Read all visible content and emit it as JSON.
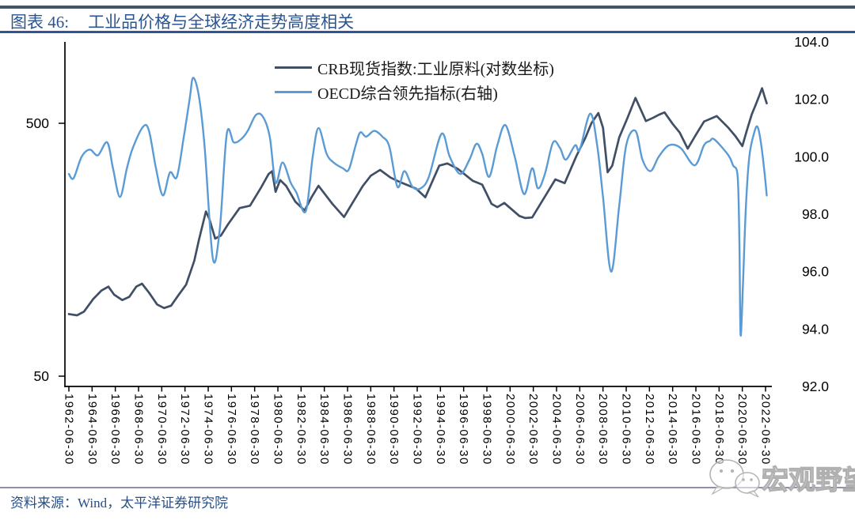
{
  "header": {
    "chart_label": "图表 46:",
    "chart_title": "工业品价格与全球经济走势高度相关"
  },
  "legend": {
    "entries": [
      {
        "label": "CRB现货指数:工业原料(对数坐标)",
        "color": "#414F66"
      },
      {
        "label": "OECD综合领先指标(右轴)",
        "color": "#5B9BD5"
      }
    ]
  },
  "footer": {
    "source_label": "资料来源：Wind，太平洋证券研究院"
  },
  "watermark": {
    "icon": "wechat-icon",
    "text": "宏观野望"
  },
  "colors": {
    "top_rule": "#44546A",
    "title_rule": "#2F5597",
    "title_text": "#2A5492",
    "footer_rule": "#8F8FAE",
    "footer_text": "#274F86",
    "crb_line": "#414F66",
    "oecd_line": "#5B9BD5",
    "axis": "#000000"
  },
  "chart_data": {
    "type": "line",
    "title": "工业品价格与全球经济走势高度相关",
    "x_axis": {
      "start_year": 1962.5,
      "end_year": 2022.5,
      "tick_labels": [
        "1962-06-30",
        "1964-06-30",
        "1966-06-30",
        "1968-06-30",
        "1970-06-30",
        "1972-06-30",
        "1974-06-30",
        "1976-06-30",
        "1978-06-30",
        "1980-06-30",
        "1982-06-30",
        "1984-06-30",
        "1986-06-30",
        "1988-06-30",
        "1990-06-30",
        "1992-06-30",
        "1994-06-30",
        "1996-06-30",
        "1998-06-30",
        "2000-06-30",
        "2002-06-30",
        "2004-06-30",
        "2006-06-30",
        "2008-06-30",
        "2010-06-30",
        "2012-06-30",
        "2014-06-30",
        "2016-06-30",
        "2018-06-30",
        "2020-06-30",
        "2022-06-30"
      ]
    },
    "left_axis": {
      "scale": "log",
      "tick_values": [
        500,
        50
      ],
      "tick_labels": [
        "500",
        "50"
      ]
    },
    "right_axis": {
      "scale": "linear",
      "min": 92.0,
      "max": 104.0,
      "tick_values": [
        104,
        102,
        100,
        98,
        96,
        94,
        92
      ],
      "tick_labels": [
        "104.0",
        "102.0",
        "100.0",
        "98.0",
        "96.0",
        "94.0",
        "92.0"
      ]
    },
    "series": [
      {
        "name": "CRB现货指数:工业原料(对数坐标)",
        "axis": "left",
        "color": "#414F66",
        "line_style": "jagged",
        "points": [
          [
            1962.5,
            88
          ],
          [
            1963.2,
            87
          ],
          [
            1963.8,
            90
          ],
          [
            1964.6,
            101
          ],
          [
            1965.3,
            109
          ],
          [
            1965.9,
            113
          ],
          [
            1966.4,
            105
          ],
          [
            1967.1,
            100
          ],
          [
            1967.7,
            103
          ],
          [
            1968.3,
            113
          ],
          [
            1968.8,
            116
          ],
          [
            1969.4,
            107
          ],
          [
            1970.1,
            96
          ],
          [
            1970.7,
            93
          ],
          [
            1971.3,
            95
          ],
          [
            1971.9,
            104
          ],
          [
            1972.6,
            115
          ],
          [
            1973.3,
            143
          ],
          [
            1973.7,
            173
          ],
          [
            1974.3,
            224
          ],
          [
            1974.6,
            209
          ],
          [
            1975.1,
            175
          ],
          [
            1975.6,
            180
          ],
          [
            1976.2,
            199
          ],
          [
            1977.2,
            231
          ],
          [
            1978.1,
            236
          ],
          [
            1979.0,
            276
          ],
          [
            1979.7,
            315
          ],
          [
            1980.0,
            323
          ],
          [
            1980.3,
            268
          ],
          [
            1980.7,
            298
          ],
          [
            1981.2,
            283
          ],
          [
            1982.0,
            245
          ],
          [
            1982.8,
            226
          ],
          [
            1983.4,
            255
          ],
          [
            1984.0,
            283
          ],
          [
            1985.2,
            240
          ],
          [
            1986.2,
            213
          ],
          [
            1987.0,
            245
          ],
          [
            1987.8,
            282
          ],
          [
            1988.5,
            310
          ],
          [
            1989.3,
            327
          ],
          [
            1990.2,
            305
          ],
          [
            1991.0,
            293
          ],
          [
            1992.4,
            276
          ],
          [
            1993.2,
            255
          ],
          [
            1994.4,
            340
          ],
          [
            1995.1,
            347
          ],
          [
            1996.0,
            330
          ],
          [
            1997.3,
            296
          ],
          [
            1998.1,
            286
          ],
          [
            1998.9,
            240
          ],
          [
            1999.4,
            233
          ],
          [
            2000.0,
            242
          ],
          [
            2001.3,
            215
          ],
          [
            2001.8,
            211
          ],
          [
            2002.4,
            212
          ],
          [
            2003.6,
            261
          ],
          [
            2004.4,
            300
          ],
          [
            2005.2,
            290
          ],
          [
            2006.2,
            370
          ],
          [
            2007.0,
            440
          ],
          [
            2007.5,
            500
          ],
          [
            2008.1,
            549
          ],
          [
            2008.5,
            480
          ],
          [
            2008.9,
            320
          ],
          [
            2009.3,
            340
          ],
          [
            2009.9,
            440
          ],
          [
            2010.6,
            524
          ],
          [
            2011.3,
            630
          ],
          [
            2012.2,
            510
          ],
          [
            2012.8,
            525
          ],
          [
            2013.3,
            540
          ],
          [
            2013.8,
            552
          ],
          [
            2014.5,
            497
          ],
          [
            2015.1,
            460
          ],
          [
            2015.8,
            397
          ],
          [
            2016.5,
            450
          ],
          [
            2017.2,
            508
          ],
          [
            2018.3,
            534
          ],
          [
            2019.3,
            480
          ],
          [
            2019.9,
            445
          ],
          [
            2020.5,
            406
          ],
          [
            2020.9,
            470
          ],
          [
            2021.3,
            540
          ],
          [
            2021.7,
            600
          ],
          [
            2022.0,
            650
          ],
          [
            2022.2,
            688
          ],
          [
            2022.45,
            630
          ],
          [
            2022.6,
            600
          ]
        ]
      },
      {
        "name": "OECD综合领先指标(右轴)",
        "axis": "right",
        "color": "#5B9BD5",
        "line_style": "smooth",
        "points": [
          [
            1962.5,
            99.4
          ],
          [
            1962.9,
            99.25
          ],
          [
            1963.6,
            100.0
          ],
          [
            1964.3,
            100.25
          ],
          [
            1965.0,
            100.05
          ],
          [
            1965.8,
            100.5
          ],
          [
            1966.3,
            99.6
          ],
          [
            1966.9,
            98.6
          ],
          [
            1967.5,
            99.6
          ],
          [
            1968.0,
            100.3
          ],
          [
            1968.9,
            101.05
          ],
          [
            1969.4,
            100.9
          ],
          [
            1970.0,
            99.6
          ],
          [
            1970.6,
            98.65
          ],
          [
            1971.2,
            99.45
          ],
          [
            1971.8,
            99.3
          ],
          [
            1972.4,
            100.7
          ],
          [
            1972.9,
            102.0
          ],
          [
            1973.2,
            102.75
          ],
          [
            1973.7,
            102.1
          ],
          [
            1974.2,
            100.3
          ],
          [
            1974.9,
            96.45
          ],
          [
            1975.5,
            97.5
          ],
          [
            1976.1,
            100.8
          ],
          [
            1976.7,
            100.5
          ],
          [
            1977.3,
            100.6
          ],
          [
            1977.9,
            100.9
          ],
          [
            1978.6,
            101.45
          ],
          [
            1979.2,
            101.4
          ],
          [
            1979.8,
            100.7
          ],
          [
            1980.3,
            99.1
          ],
          [
            1980.9,
            99.8
          ],
          [
            1981.6,
            99.1
          ],
          [
            1982.1,
            98.75
          ],
          [
            1982.9,
            98.1
          ],
          [
            1983.5,
            100.0
          ],
          [
            1984.0,
            101.0
          ],
          [
            1984.7,
            100.1
          ],
          [
            1985.3,
            99.8
          ],
          [
            1986.1,
            99.6
          ],
          [
            1986.6,
            99.55
          ],
          [
            1987.2,
            100.4
          ],
          [
            1987.6,
            100.85
          ],
          [
            1988.1,
            100.7
          ],
          [
            1988.8,
            100.9
          ],
          [
            1989.5,
            100.7
          ],
          [
            1990.1,
            100.35
          ],
          [
            1990.8,
            98.95
          ],
          [
            1991.4,
            99.5
          ],
          [
            1992.1,
            98.95
          ],
          [
            1992.8,
            98.9
          ],
          [
            1993.5,
            99.3
          ],
          [
            1994.6,
            100.8
          ],
          [
            1995.3,
            100.0
          ],
          [
            1996.2,
            99.4
          ],
          [
            1997.0,
            99.9
          ],
          [
            1997.6,
            100.45
          ],
          [
            1998.1,
            100.1
          ],
          [
            1998.7,
            99.3
          ],
          [
            1999.4,
            100.4
          ],
          [
            2000.1,
            101.1
          ],
          [
            2000.9,
            100.0
          ],
          [
            2001.7,
            98.7
          ],
          [
            2002.4,
            99.6
          ],
          [
            2002.9,
            98.9
          ],
          [
            2003.5,
            99.4
          ],
          [
            2004.2,
            100.5
          ],
          [
            2004.8,
            100.3
          ],
          [
            2005.3,
            99.9
          ],
          [
            2006.1,
            100.4
          ],
          [
            2006.5,
            100.25
          ],
          [
            2007.4,
            101.5
          ],
          [
            2008.0,
            100.4
          ],
          [
            2008.5,
            98.6
          ],
          [
            2009.2,
            96.0
          ],
          [
            2009.9,
            98.3
          ],
          [
            2010.5,
            100.4
          ],
          [
            2011.3,
            100.9
          ],
          [
            2011.9,
            99.9
          ],
          [
            2012.6,
            99.5
          ],
          [
            2013.3,
            100.0
          ],
          [
            2014.2,
            100.4
          ],
          [
            2015.2,
            100.3
          ],
          [
            2016.4,
            99.7
          ],
          [
            2017.2,
            100.4
          ],
          [
            2017.7,
            100.55
          ],
          [
            2018.1,
            100.6
          ],
          [
            2019.3,
            100.05
          ],
          [
            2019.7,
            99.7
          ],
          [
            2020.1,
            99.3
          ],
          [
            2020.25,
            97.0
          ],
          [
            2020.35,
            93.8
          ],
          [
            2020.55,
            95.5
          ],
          [
            2020.8,
            98.2
          ],
          [
            2021.1,
            100.0
          ],
          [
            2021.5,
            100.8
          ],
          [
            2021.8,
            101.05
          ],
          [
            2022.1,
            100.5
          ],
          [
            2022.4,
            99.5
          ],
          [
            2022.6,
            98.65
          ]
        ]
      }
    ]
  }
}
